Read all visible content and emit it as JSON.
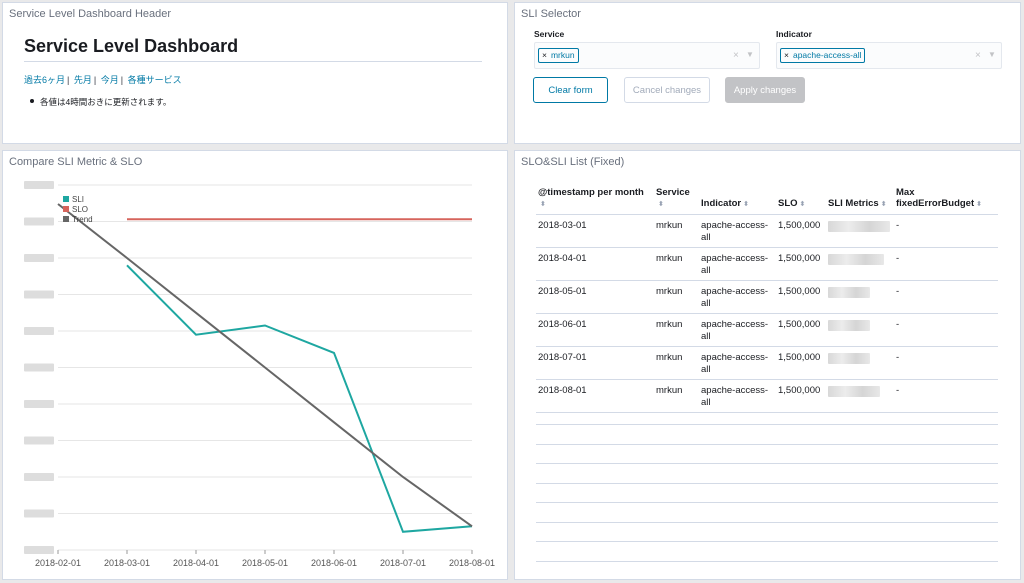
{
  "header_panel": {
    "title": "Service Level Dashboard Header",
    "heading": "Service Level Dashboard",
    "links": [
      "過去6ヶ月",
      "先月",
      "今月",
      "各種サービス"
    ],
    "note": "各値は4時間おきに更新されます。"
  },
  "selector_panel": {
    "title": "SLI Selector",
    "service_label": "Service",
    "service_value": "mrkun",
    "indicator_label": "Indicator",
    "indicator_value": "apache-access-all",
    "clear_label": "Clear form",
    "cancel_label": "Cancel changes",
    "apply_label": "Apply changes"
  },
  "chart_panel": {
    "title": "Compare SLI Metric & SLO"
  },
  "chart_data": {
    "type": "line",
    "x": [
      "2018-02-01",
      "2018-03-01",
      "2018-04-01",
      "2018-05-01",
      "2018-06-01",
      "2018-07-01",
      "2018-08-01"
    ],
    "ylim": [
      0,
      1
    ],
    "series": [
      {
        "name": "SLI",
        "color": "#1ea7a1",
        "values": [
          null,
          0.78,
          0.59,
          0.615,
          0.54,
          0.05,
          0.065
        ]
      },
      {
        "name": "SLO",
        "color": "#d6645c",
        "values": [
          null,
          0.906,
          0.906,
          0.906,
          0.906,
          0.906,
          0.906
        ]
      },
      {
        "name": "Trend",
        "color": "#666666",
        "values": [
          0.948,
          0.8,
          0.65,
          0.5,
          0.35,
          0.2,
          0.065
        ]
      }
    ],
    "legend": "top-left",
    "grid": true,
    "y_tick_count": 10
  },
  "table_panel": {
    "title": "SLO&SLI List (Fixed)",
    "columns": [
      "@timestamp per month",
      "Service",
      "Indicator",
      "SLO",
      "SLI Metrics",
      "Max fixedErrorBudget"
    ],
    "rows": [
      [
        "2018-03-01",
        "mrkun",
        "apache-access-all",
        "1,500,000",
        "",
        "-"
      ],
      [
        "2018-04-01",
        "mrkun",
        "apache-access-all",
        "1,500,000",
        "",
        "-"
      ],
      [
        "2018-05-01",
        "mrkun",
        "apache-access-all",
        "1,500,000",
        "",
        "-"
      ],
      [
        "2018-06-01",
        "mrkun",
        "apache-access-all",
        "1,500,000",
        "",
        "-"
      ],
      [
        "2018-07-01",
        "mrkun",
        "apache-access-all",
        "1,500,000",
        "",
        "-"
      ],
      [
        "2018-08-01",
        "mrkun",
        "apache-access-all",
        "1,500,000",
        "",
        "-"
      ]
    ]
  }
}
